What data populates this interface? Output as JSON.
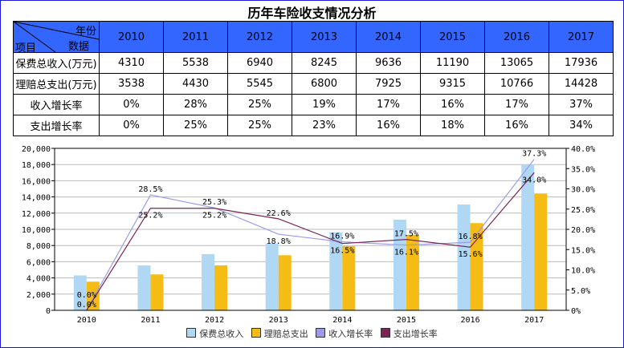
{
  "title": "历年车险收支情况分析",
  "table": {
    "corner": {
      "top": "年份",
      "middle": "数据",
      "left": "项目"
    },
    "years": [
      "2010",
      "2011",
      "2012",
      "2013",
      "2014",
      "2015",
      "2016",
      "2017"
    ],
    "rows": [
      {
        "label": "保费总收入(万元)",
        "values": [
          "4310",
          "5538",
          "6940",
          "8245",
          "9636",
          "11190",
          "13065",
          "17936"
        ]
      },
      {
        "label": "理赔总支出(万元)",
        "values": [
          "3538",
          "4430",
          "5545",
          "6800",
          "7925",
          "9315",
          "10766",
          "14428"
        ]
      },
      {
        "label": "收入增长率",
        "values": [
          "0%",
          "28%",
          "25%",
          "19%",
          "17%",
          "16%",
          "17%",
          "37%"
        ]
      },
      {
        "label": "支出增长率",
        "values": [
          "0%",
          "25%",
          "25%",
          "23%",
          "16%",
          "18%",
          "16%",
          "34%"
        ]
      }
    ],
    "header_color": "#3366ff"
  },
  "chart_data": {
    "type": "bar+line",
    "categories": [
      "2010",
      "2011",
      "2012",
      "2013",
      "2014",
      "2015",
      "2016",
      "2017"
    ],
    "y_left": {
      "range": [
        0,
        20000
      ],
      "ticks": [
        "0",
        "2,000",
        "4,000",
        "6,000",
        "8,000",
        "10,000",
        "12,000",
        "14,000",
        "16,000",
        "18,000",
        "20,000"
      ]
    },
    "y_right": {
      "range": [
        0,
        40
      ],
      "ticks": [
        "0%",
        "5.0%",
        "10.0%",
        "15.0%",
        "20.0%",
        "25.0%",
        "30.0%",
        "35.0%",
        "40.0%"
      ]
    },
    "grid": true,
    "legend": "bottom",
    "series": [
      {
        "name": "保费总收入",
        "type": "bar",
        "axis": "left",
        "color": "#b0d8f4",
        "values": [
          4310,
          5538,
          6940,
          8245,
          9636,
          11190,
          13065,
          17936
        ]
      },
      {
        "name": "理赔总支出",
        "type": "bar",
        "axis": "left",
        "color": "#f4bc14",
        "values": [
          3538,
          4430,
          5545,
          6800,
          7925,
          9315,
          10766,
          14428
        ]
      },
      {
        "name": "收入增长率",
        "type": "line",
        "axis": "right",
        "color": "#9b9bea",
        "values": [
          0,
          28.5,
          25.3,
          18.8,
          16.9,
          16.1,
          16.8,
          37.3
        ],
        "labels": [
          "0.0%",
          "28.5%",
          "25.3%",
          "18.8%",
          "16.9%",
          "16.1%",
          "16.8%",
          "37.3%"
        ]
      },
      {
        "name": "支出增长率",
        "type": "line",
        "axis": "right",
        "color": "#7b2556",
        "values": [
          0,
          25.2,
          25.2,
          22.6,
          16.5,
          17.5,
          15.6,
          34.0
        ],
        "labels": [
          "0.0%",
          "25.2%",
          "25.2%",
          "22.6%",
          "16.5%",
          "17.5%",
          "15.6%",
          "34.0%"
        ]
      }
    ]
  }
}
